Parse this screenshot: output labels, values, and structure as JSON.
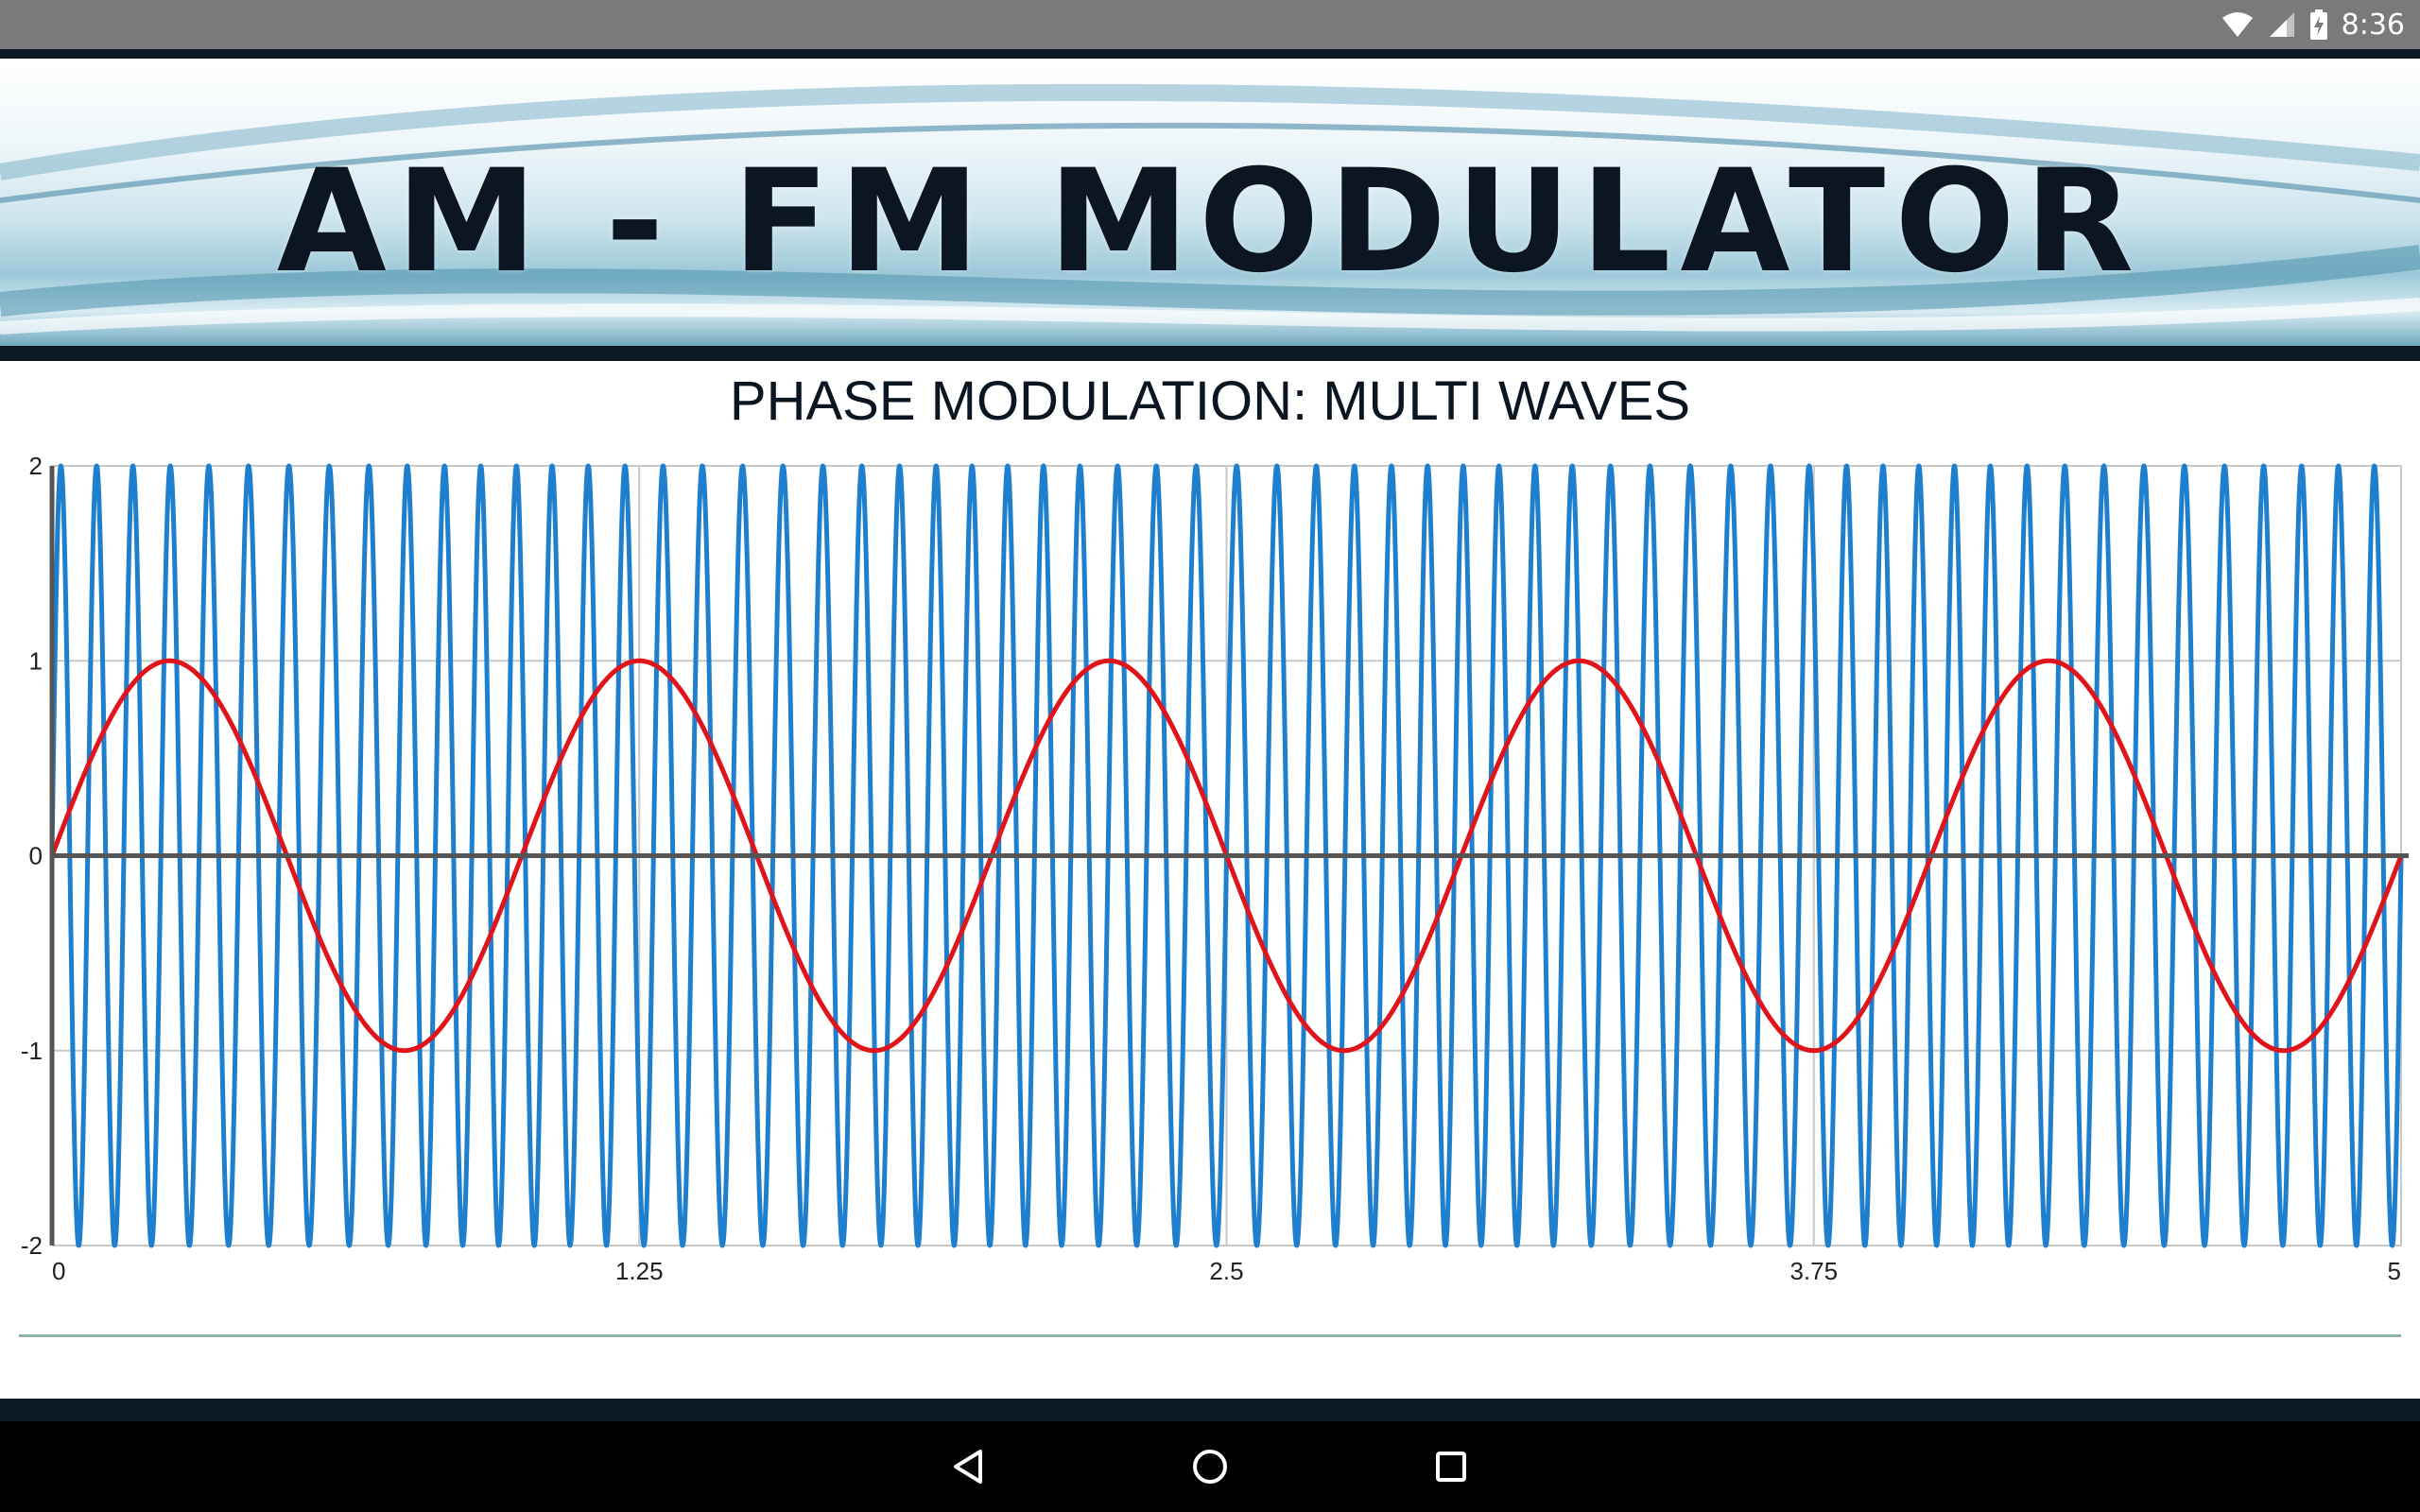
{
  "status_bar": {
    "time": "8:36",
    "icons": [
      "wifi-icon",
      "signal-icon",
      "battery-charging-icon"
    ]
  },
  "banner": {
    "title": "AM - FM MODULATOR"
  },
  "chart_title": "PHASE MODULATION: MULTI WAVES",
  "navigation": {
    "icons": [
      "back-icon",
      "home-icon",
      "recents-icon"
    ]
  },
  "colors": {
    "carrier": "#1f7fcf",
    "message": "#e0141b",
    "grid": "#c8c8c8",
    "axis": "#555555"
  },
  "chart_data": {
    "type": "line",
    "title": "PHASE MODULATION: MULTI WAVES",
    "xlabel": "",
    "ylabel": "",
    "xlim": [
      0,
      5
    ],
    "ylim": [
      -2,
      2
    ],
    "x_ticks": [
      "0",
      "1.25",
      "2.5",
      "3.75",
      "5"
    ],
    "y_ticks": [
      "2",
      "1",
      "0",
      "-1",
      "-2"
    ],
    "grid": true,
    "legend": "none",
    "series": [
      {
        "role": "modulated-carrier",
        "amplitude": 2,
        "cycles_over_range": 62,
        "phase_deviation": 0.8,
        "color": "#1f7fcf"
      },
      {
        "role": "message",
        "amplitude": 1,
        "cycles_over_range": 5,
        "color": "#e0141b"
      }
    ]
  }
}
